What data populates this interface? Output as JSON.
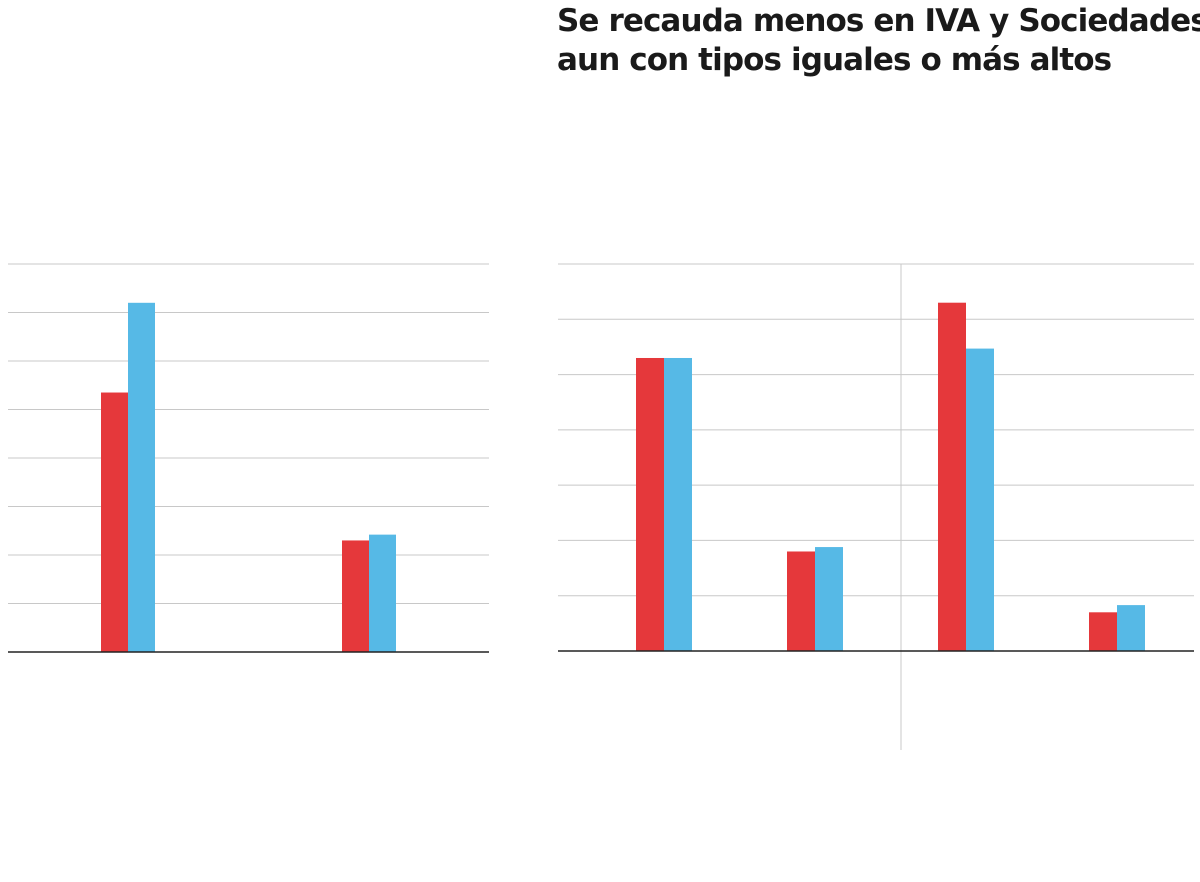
{
  "headline": {
    "line1": "Se recauda menos en IVA y Sociedades,",
    "line2": "aun con tipos iguales o más altos"
  },
  "colors": {
    "series_a": "#e5383b",
    "series_b": "#56b9e6",
    "grid": "#c8c8c8",
    "axis": "#222222",
    "divider": "#c8c8c8"
  },
  "chart_data": [
    {
      "type": "bar",
      "panel": "left",
      "categories": [
        "",
        ""
      ],
      "series": [
        {
          "values": [
            5.35,
            2.3
          ]
        },
        {
          "values": [
            7.2,
            2.42
          ]
        }
      ],
      "ylim": [
        0,
        8
      ],
      "grid": true,
      "gridlines": 8
    },
    {
      "type": "bar",
      "panel": "right",
      "categories": [
        "",
        "",
        "",
        ""
      ],
      "series": [
        {
          "values": [
            5.3,
            1.8,
            6.3,
            0.7
          ]
        },
        {
          "values": [
            5.3,
            1.88,
            5.47,
            0.83
          ]
        }
      ],
      "ylim": [
        0,
        7
      ],
      "grid": true,
      "gridlines": 7
    }
  ]
}
